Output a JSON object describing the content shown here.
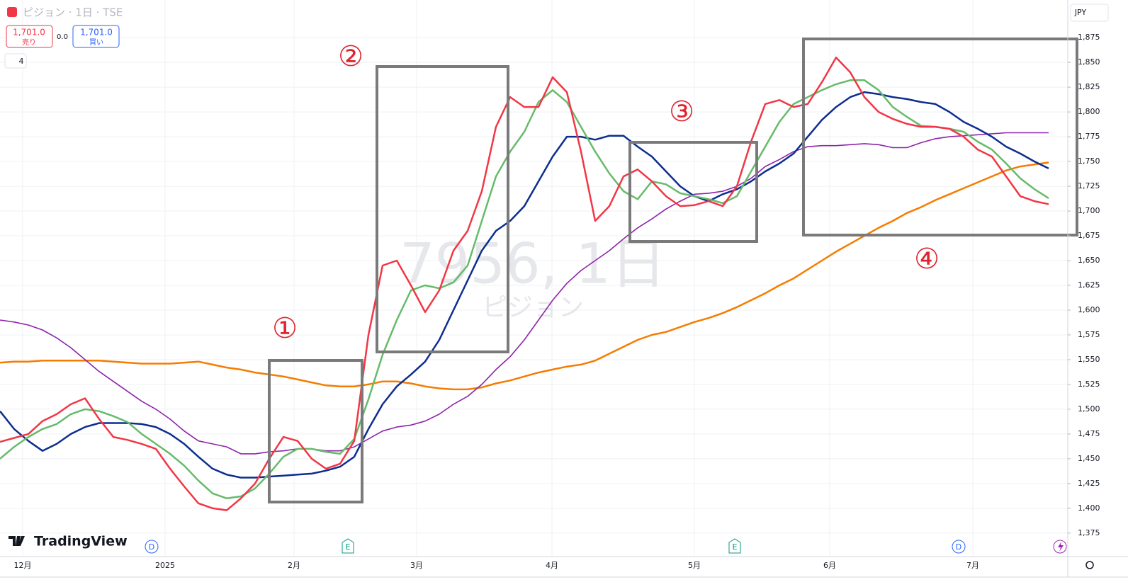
{
  "header": {
    "symbol": "ピジョン · 1日 · TSE",
    "sell_price": "1,701.0",
    "sell_label": "売り",
    "spread": "0.0",
    "buy_price": "1,701.0",
    "buy_label": "買い",
    "indicators": "4",
    "currency": "JPY"
  },
  "watermark": {
    "symbol": "7956, 1日",
    "name": "ピジョン"
  },
  "logo": "TradingView",
  "events": [
    "D",
    "E",
    "E",
    "D"
  ],
  "chart_data": {
    "type": "line",
    "annotations": [
      "①",
      "②",
      "③",
      "④"
    ],
    "x": [
      0,
      1,
      2,
      3,
      4,
      5,
      6,
      7,
      8,
      9,
      10,
      11,
      12,
      13,
      14,
      15,
      16,
      17,
      18,
      19,
      20,
      21,
      22,
      23,
      24,
      25,
      26,
      27,
      28,
      29,
      30,
      31,
      32,
      33,
      34,
      35,
      36,
      37,
      38,
      39,
      40,
      41,
      42,
      43,
      44,
      45,
      46,
      47,
      48,
      49,
      50,
      51,
      52,
      53,
      54,
      55,
      56,
      57,
      58,
      59,
      60,
      61,
      62,
      63,
      64,
      65,
      66,
      67,
      68,
      69,
      70,
      71,
      72,
      73,
      74
    ],
    "xlim": [
      0,
      75.35
    ],
    "xticks": [
      {
        "value": 1.6,
        "label": "12月"
      },
      {
        "value": 11.65,
        "label": "2025"
      },
      {
        "value": 20.75,
        "label": "2月"
      },
      {
        "value": 29.4,
        "label": "3月"
      },
      {
        "value": 38.95,
        "label": "4月"
      },
      {
        "value": 49,
        "label": "5月"
      },
      {
        "value": 58.55,
        "label": "6月"
      },
      {
        "value": 68.65,
        "label": "7月"
      }
    ],
    "ylim": [
      1352,
      1913
    ],
    "yticks": [
      {
        "value": 1375,
        "label": "1,375"
      },
      {
        "value": 1400,
        "label": "1,400"
      },
      {
        "value": 1425,
        "label": "1,425"
      },
      {
        "value": 1450,
        "label": "1,450"
      },
      {
        "value": 1475,
        "label": "1,475"
      },
      {
        "value": 1500,
        "label": "1,500"
      },
      {
        "value": 1525,
        "label": "1,525"
      },
      {
        "value": 1550,
        "label": "1,550"
      },
      {
        "value": 1575,
        "label": "1,575"
      },
      {
        "value": 1600,
        "label": "1,600"
      },
      {
        "value": 1625,
        "label": "1,625"
      },
      {
        "value": 1650,
        "label": "1,650"
      },
      {
        "value": 1675,
        "label": "1,675"
      },
      {
        "value": 1700,
        "label": "1,700"
      },
      {
        "value": 1725,
        "label": "1,725"
      },
      {
        "value": 1750,
        "label": "1,750"
      },
      {
        "value": 1775,
        "label": "1,775"
      },
      {
        "value": 1800,
        "label": "1,800"
      },
      {
        "value": 1825,
        "label": "1,825"
      },
      {
        "value": 1850,
        "label": "1,850"
      },
      {
        "value": 1875,
        "label": "1,875"
      }
    ],
    "grid": true,
    "series": [
      {
        "color": "#f57c00",
        "values": [
          1547,
          1548,
          1548,
          1549,
          1549,
          1549,
          1549,
          1549,
          1548,
          1547,
          1546,
          1546,
          1546,
          1547,
          1548,
          1545,
          1542,
          1540,
          1537,
          1535,
          1533,
          1530,
          1527,
          1524,
          1523,
          1523,
          1525,
          1528,
          1528,
          1526,
          1523,
          1521,
          1520,
          1520,
          1522,
          1526,
          1529,
          1533,
          1537,
          1540,
          1543,
          1545,
          1549,
          1556,
          1563,
          1570,
          1575,
          1578,
          1583,
          1588,
          1592,
          1597,
          1603,
          1610,
          1617,
          1625,
          1632,
          1641,
          1650,
          1659,
          1667,
          1675,
          1683,
          1690,
          1698,
          1704,
          1711,
          1717,
          1723,
          1729,
          1735,
          1741,
          1745,
          1747,
          1749
        ]
      },
      {
        "color": "#8e24aa",
        "values": [
          1590,
          1588,
          1585,
          1580,
          1572,
          1562,
          1550,
          1538,
          1528,
          1518,
          1508,
          1500,
          1490,
          1478,
          1468,
          1465,
          1462,
          1455,
          1455,
          1457,
          1458,
          1460,
          1460,
          1458,
          1458,
          1462,
          1470,
          1478,
          1482,
          1484,
          1488,
          1495,
          1505,
          1513,
          1525,
          1540,
          1553,
          1570,
          1590,
          1610,
          1627,
          1640,
          1650,
          1660,
          1672,
          1683,
          1692,
          1702,
          1710,
          1717,
          1718,
          1720,
          1725,
          1733,
          1745,
          1752,
          1760,
          1765,
          1766,
          1766,
          1767,
          1768,
          1767,
          1764,
          1764,
          1769,
          1773,
          1775,
          1776,
          1777,
          1778,
          1779,
          1779,
          1779,
          1779
        ]
      },
      {
        "color": "#0d2d8f",
        "values": [
          1498,
          1480,
          1468,
          1458,
          1465,
          1475,
          1482,
          1486,
          1486,
          1486,
          1485,
          1482,
          1475,
          1465,
          1452,
          1440,
          1434,
          1431,
          1431,
          1432,
          1433,
          1434,
          1435,
          1438,
          1442,
          1452,
          1480,
          1505,
          1523,
          1535,
          1548,
          1570,
          1600,
          1630,
          1660,
          1680,
          1690,
          1705,
          1730,
          1755,
          1775,
          1775,
          1772,
          1776,
          1776,
          1765,
          1755,
          1740,
          1725,
          1715,
          1710,
          1717,
          1722,
          1730,
          1740,
          1748,
          1758,
          1775,
          1792,
          1805,
          1815,
          1820,
          1818,
          1815,
          1813,
          1810,
          1808,
          1800,
          1790,
          1783,
          1775,
          1765,
          1758,
          1750,
          1743
        ]
      },
      {
        "color": "#66bb6a",
        "values": [
          1450,
          1462,
          1472,
          1480,
          1485,
          1495,
          1500,
          1498,
          1493,
          1487,
          1475,
          1465,
          1455,
          1443,
          1428,
          1415,
          1410,
          1412,
          1420,
          1435,
          1452,
          1460,
          1460,
          1457,
          1455,
          1470,
          1510,
          1555,
          1590,
          1620,
          1625,
          1622,
          1628,
          1645,
          1690,
          1735,
          1760,
          1780,
          1810,
          1822,
          1810,
          1785,
          1760,
          1738,
          1720,
          1712,
          1730,
          1727,
          1718,
          1715,
          1712,
          1708,
          1715,
          1740,
          1765,
          1790,
          1808,
          1815,
          1822,
          1828,
          1832,
          1832,
          1822,
          1805,
          1795,
          1786,
          1785,
          1783,
          1780,
          1770,
          1762,
          1748,
          1733,
          1722,
          1713
        ]
      },
      {
        "color": "#f23645",
        "values": [
          1467,
          1471,
          1475,
          1488,
          1495,
          1505,
          1511,
          1490,
          1472,
          1469,
          1465,
          1460,
          1440,
          1422,
          1405,
          1400,
          1398,
          1410,
          1425,
          1450,
          1472,
          1468,
          1450,
          1440,
          1445,
          1468,
          1575,
          1645,
          1650,
          1625,
          1598,
          1620,
          1660,
          1680,
          1720,
          1785,
          1815,
          1805,
          1805,
          1835,
          1820,
          1760,
          1690,
          1705,
          1735,
          1742,
          1730,
          1715,
          1705,
          1706,
          1710,
          1705,
          1725,
          1770,
          1808,
          1812,
          1805,
          1808,
          1830,
          1855,
          1840,
          1815,
          1800,
          1793,
          1788,
          1785,
          1785,
          1783,
          1775,
          1762,
          1755,
          1735,
          1715,
          1710,
          1707
        ]
      }
    ]
  }
}
